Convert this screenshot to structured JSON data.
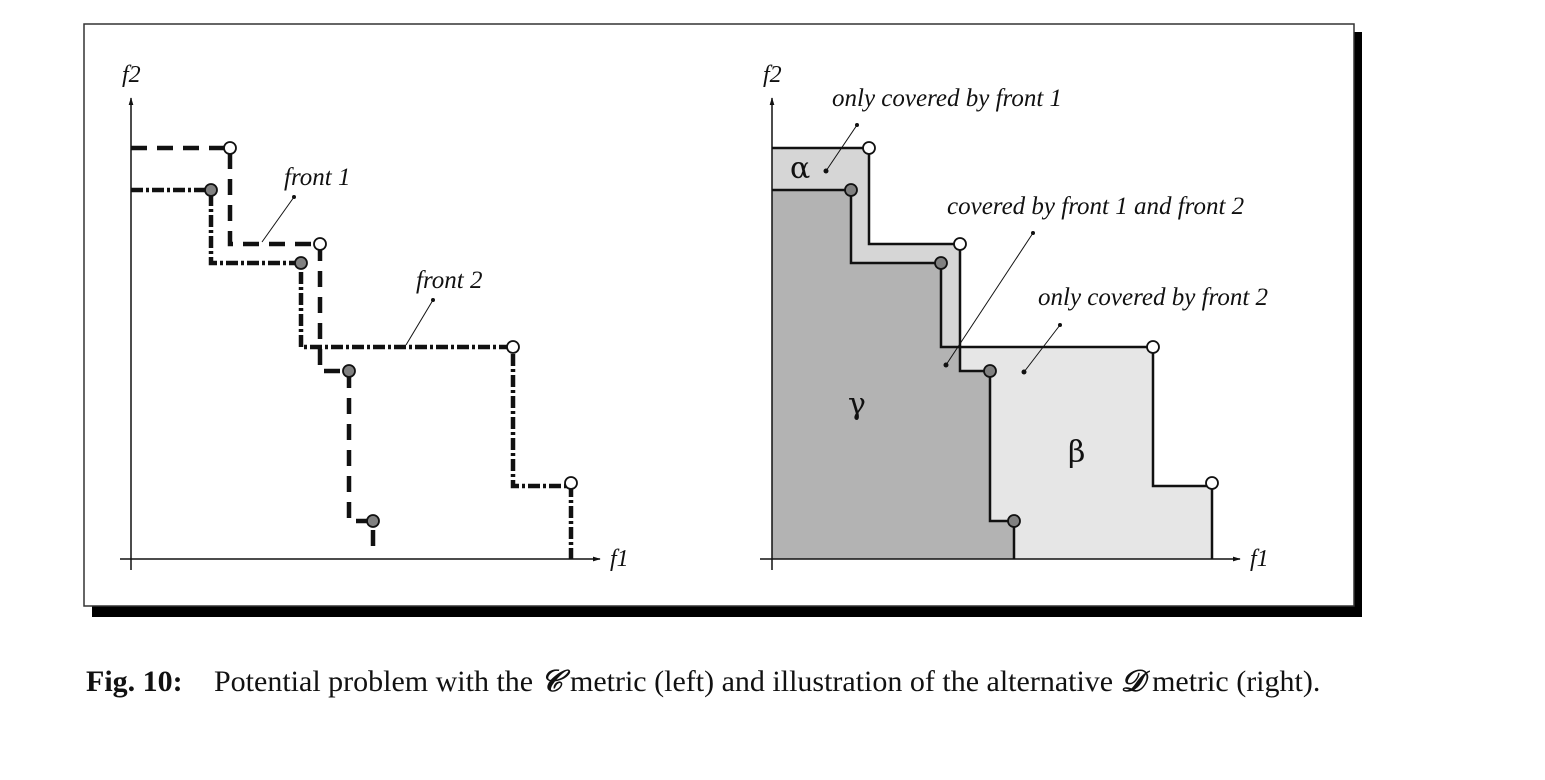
{
  "left_panel": {
    "axis_x_label": "f1",
    "axis_y_label": "f2",
    "front1_label": "front 1",
    "front2_label": "front 2"
  },
  "right_panel": {
    "axis_x_label": "f1",
    "axis_y_label": "f2",
    "region_alpha": "α",
    "region_beta": "β",
    "region_gamma": "γ",
    "label_only_front1": "only covered by front 1",
    "label_both": "covered by front 1 and front 2",
    "label_only_front2": "only covered by front 2"
  },
  "colors": {
    "frame_shadow": "#000000",
    "region_gamma": "#b3b3b3",
    "region_alpha": "#d6d6d6",
    "region_beta": "#e6e6e6",
    "front1_point_fill": "#ffffff",
    "front2_point_fill": "#808080"
  },
  "caption": {
    "label": "Fig. 10:",
    "text_part1": "Potential problem with the ",
    "symbol_c": "𝒞",
    "text_part2": " metric (left) and illustration of the alternative ",
    "symbol_d": "𝒟",
    "text_part3": " metric (right)."
  }
}
